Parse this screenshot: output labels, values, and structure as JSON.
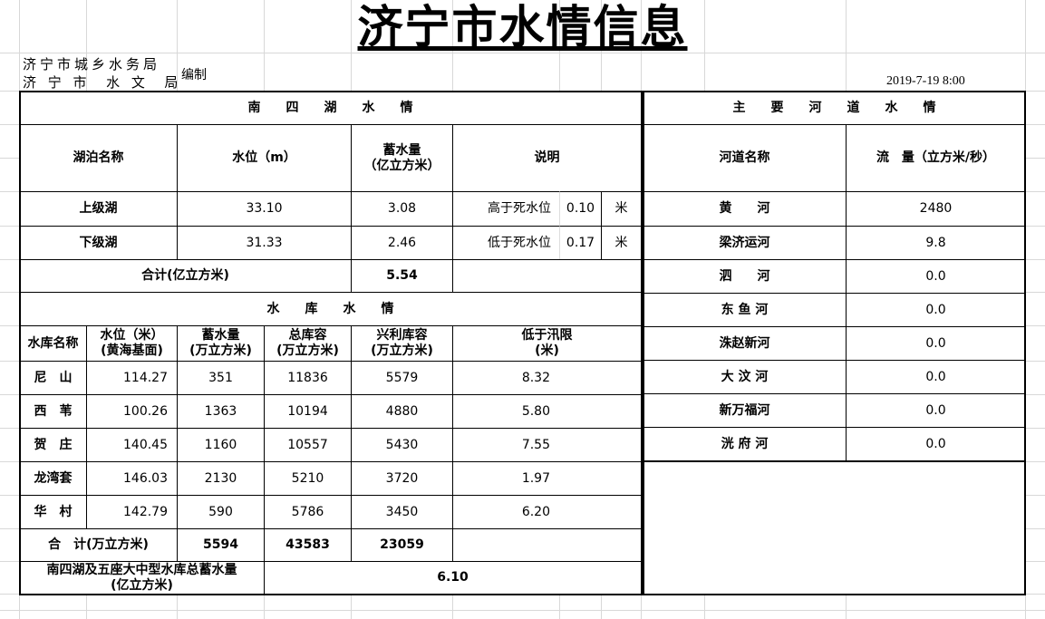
{
  "title": "济宁市水情信息",
  "org_line1": "济宁市城乡水务局",
  "org_line2": "济 宁 市  水 文  局",
  "compiled": "编制",
  "date": "2019-7-19 8:00",
  "lake": {
    "header": "南　　四　　湖　　水　　情",
    "columns": [
      "湖泊名称",
      "水位（m）",
      "蓄水量\n（亿立方米）",
      "说明"
    ],
    "rows": [
      {
        "name": "上级湖",
        "level": "33.10",
        "storage": "3.08",
        "note": "高于死水位",
        "diff": "0.10",
        "unit": "米"
      },
      {
        "name": "下级湖",
        "level": "31.33",
        "storage": "2.46",
        "note": "低于死水位",
        "diff": "0.17",
        "unit": "米"
      }
    ],
    "total_label": "合计(亿立方米)",
    "total": "5.54"
  },
  "reservoir": {
    "header": "水　　库　　水　　情",
    "columns": [
      "水库名称",
      "水位（米）\n(黄海基面)",
      "蓄水量\n(万立方米)",
      "总库容\n(万立方米)",
      "兴利库容\n(万立方米)",
      "低于汛限\n(米)"
    ],
    "rows": [
      {
        "name": "尼　山",
        "level": "114.27",
        "storage": "351",
        "total": "11836",
        "useful": "5579",
        "below": "8.32"
      },
      {
        "name": "西　苇",
        "level": "100.26",
        "storage": "1363",
        "total": "10194",
        "useful": "4880",
        "below": "5.80"
      },
      {
        "name": "贺　庄",
        "level": "140.45",
        "storage": "1160",
        "total": "10557",
        "useful": "5430",
        "below": "7.55"
      },
      {
        "name": "龙湾套",
        "level": "146.03",
        "storage": "2130",
        "total": "5210",
        "useful": "3720",
        "below": "1.97"
      },
      {
        "name": "华　村",
        "level": "142.79",
        "storage": "590",
        "total": "5786",
        "useful": "3450",
        "below": "6.20"
      }
    ],
    "total_label": "合　计(万立方米)",
    "total_storage": "5594",
    "total_capacity": "43583",
    "total_useful": "23059"
  },
  "grand": {
    "label": "南四湖及五座大中型水库总蓄水量\n(亿立方米)",
    "value": "6.10"
  },
  "rivers": {
    "header": "主　　要　　河　　道　　水　　情",
    "columns": [
      "河道名称",
      "流　量（立方米/秒）"
    ],
    "rows": [
      {
        "name": "黄　　河",
        "flow": "2480"
      },
      {
        "name": "梁济运河",
        "flow": "9.8"
      },
      {
        "name": "泗　　河",
        "flow": "0.0"
      },
      {
        "name": "东 鱼 河",
        "flow": "0.0"
      },
      {
        "name": "洙赵新河",
        "flow": "0.0"
      },
      {
        "name": "大 汶 河",
        "flow": "0.0"
      },
      {
        "name": "新万福河",
        "flow": "0.0"
      },
      {
        "name": "洸 府 河",
        "flow": "0.0"
      }
    ]
  }
}
